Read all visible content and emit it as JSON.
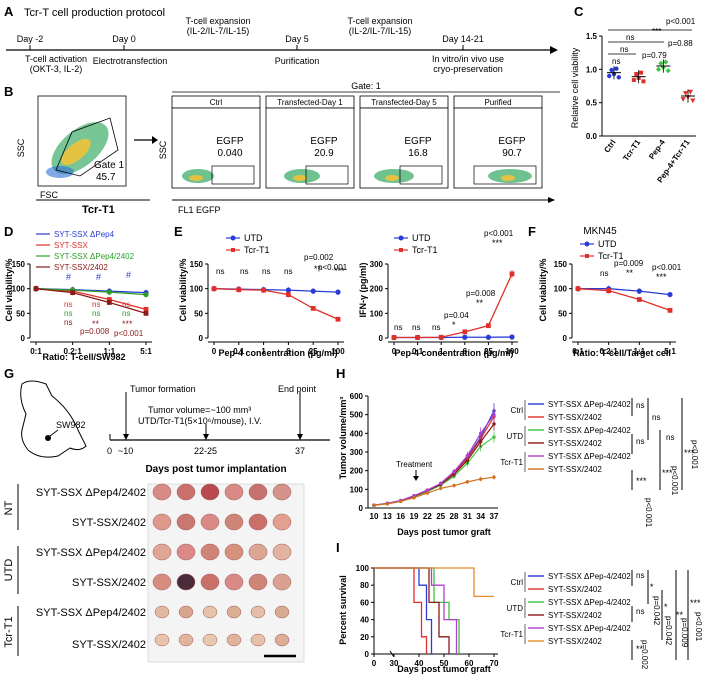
{
  "panels": {
    "A": "A",
    "B": "B",
    "C": "C",
    "D": "D",
    "E": "E",
    "F": "F",
    "G": "G",
    "H": "H",
    "I": "I"
  },
  "panel_a": {
    "title": "Tcr-T cell production protocol",
    "day_m2": "Day -2",
    "day_0": "Day 0",
    "day_5": "Day 5",
    "day_14": "Day 14-21",
    "ev1a": "T-cell activation",
    "ev1b": "(OKT-3, IL-2)",
    "ev2": "Electrotransfection",
    "ev3a": "T-cell expansion",
    "ev3b": "(IL-2/IL-7/IL-15)",
    "ev4": "Purification",
    "ev5a": "T-cell expansion",
    "ev5b": "(IL-2/IL-7/IL-15)",
    "ev6a": "In vitro/in vivo use",
    "ev6b": "cryo-preservation"
  },
  "panel_b": {
    "gate_label": "Gate 1",
    "gate_value": "45.7",
    "header": "Gate: 1",
    "ssc": "SSC",
    "fsc": "FSC",
    "tcr": "Tcr-T1",
    "fl1": "FL1 EGFP",
    "plots": [
      {
        "title": "Ctrl",
        "egfp": "EGFP",
        "value": "0.040"
      },
      {
        "title": "Transfected-Day 1",
        "egfp": "EGFP",
        "value": "20.9"
      },
      {
        "title": "Transfected-Day 5",
        "egfp": "EGFP",
        "value": "16.8"
      },
      {
        "title": "Purified",
        "egfp": "EGFP",
        "value": "90.7"
      }
    ]
  },
  "panel_c": {
    "ylabel": "Relative cell viability",
    "categories": [
      "Ctrl",
      "Tcr-T1",
      "Pep-4",
      "Pep-4+Tcr-T1"
    ],
    "stats": [
      "p<0.001",
      "***",
      "ns",
      "p=0.88",
      "ns",
      "p=0.79",
      "ns"
    ]
  },
  "panel_d": {
    "ylabel": "Cell viability/%",
    "xlabel": "Ratio: T-cell/SW982",
    "legend": [
      "SYT-SSX ΔPep4",
      "SYT-SSX",
      "SYT-SSX ΔPep4/2402",
      "SYT-SSX/2402"
    ],
    "sig": [
      "#",
      "ns",
      "**",
      "p=0.008",
      "***",
      "p<0.001"
    ]
  },
  "panel_e1": {
    "ylabel": "Cell viability/%",
    "xlabel": "Pep-4 concentration (μg/ml)",
    "legend": [
      "UTD",
      "Tcr-T1"
    ],
    "stats": [
      "ns",
      "p=0.002",
      "p<0.001",
      "**",
      "***"
    ]
  },
  "panel_e2": {
    "ylabel": "IFN-γ (pg/ml)",
    "xlabel": "Pep-4 concentration (μg/ml)",
    "legend": [
      "UTD",
      "Tcr-T1"
    ],
    "stats": [
      "ns",
      "p=0.04",
      "p=0.008",
      "p<0.001",
      "*",
      "**",
      "***"
    ]
  },
  "panel_f": {
    "title": "MKN45",
    "ylabel": "Cell viability/%",
    "xlabel": "Ratio: T-cell/Target cell",
    "legend": [
      "UTD",
      "Tcr-T1"
    ],
    "stats": [
      "ns",
      "p=0.009",
      "p<0.001",
      "**",
      "***"
    ]
  },
  "panel_g": {
    "tf": "Tumor formation",
    "ep": "End point",
    "tv": "Tumor volume=~100 mm³",
    "udt": "UTD/Tcr-T1(5×10⁶/mouse), I.V.",
    "sw": "SW982",
    "t0": "0",
    "t10": "~10",
    "t22": "22-25",
    "t37": "37",
    "xlabel": "Days post tumor implantation",
    "groups": [
      "NT",
      "UTD",
      "Tcr-T1"
    ],
    "rows": [
      "SYT-SSX ΔPep4/2402",
      "SYT-SSX/2402",
      "SYT-SSX ΔPep4/2402",
      "SYT-SSX/2402",
      "SYT-SSX ΔPep4/2402",
      "SYT-SSX/2402"
    ]
  },
  "panel_h": {
    "ylabel": "Tumor volume/mm³",
    "xlabel": "Days post tumor graft",
    "treatment": "Treatment",
    "groups": [
      "Ctrl",
      "UTD",
      "Tcr-T1"
    ],
    "legend": [
      "SYT-SSX ΔPep-4/2402",
      "SYT-SSX/2402",
      "SYT-SSX ΔPep-4/2402",
      "SYT-SSX/2402",
      "SYT-SSX ΔPep-4/2402",
      "SYT-SSX/2402"
    ],
    "stats": [
      "ns",
      "ns",
      "ns",
      "ns",
      "***",
      "p<0.001",
      "***",
      "p<0.001",
      "***",
      "p<0.001"
    ]
  },
  "panel_i": {
    "ylabel": "Percent survival",
    "xlabel": "Days post tumor graft",
    "groups": [
      "Ctrl",
      "UTD",
      "Tcr-T1"
    ],
    "legend": [
      "SYT-SSX ΔPep-4/2402",
      "SYT-SSX/2402",
      "SYT-SSX ΔPep-4/2402",
      "SYT-SSX/2402",
      "SYT-SSX ΔPep-4/2402",
      "SYT-SSX/2402"
    ],
    "stats": [
      "ns",
      "*",
      "p=0.042",
      "ns",
      "*",
      "p=0.042",
      "**",
      "p=0.009",
      "**",
      "p=0.002",
      "***",
      "p<0.001"
    ]
  },
  "chart_data": [
    {
      "type": "scatter",
      "id": "C",
      "categories": [
        "Ctrl",
        "Tcr-T1",
        "Pep-4",
        "Pep-4+Tcr-T1"
      ],
      "means": [
        0.95,
        0.89,
        1.05,
        0.6
      ],
      "ylim": [
        0,
        1.5
      ],
      "yticks": [
        0,
        0.5,
        1.0,
        1.5
      ],
      "ylabel": "Relative cell viability"
    },
    {
      "type": "line",
      "id": "D",
      "categories": [
        "0:1",
        "0.2:1",
        "1:1",
        "5:1"
      ],
      "ylim": [
        0,
        150
      ],
      "yticks": [
        0,
        50,
        100,
        150
      ],
      "series": [
        {
          "name": "SYT-SSX ΔPep4",
          "color": "#2b3bd6",
          "values": [
            100,
            98,
            95,
            92
          ]
        },
        {
          "name": "SYT-SSX",
          "color": "#e0302a",
          "values": [
            100,
            95,
            78,
            58
          ]
        },
        {
          "name": "SYT-SSX ΔPep4/2402",
          "color": "#2aa02a",
          "values": [
            100,
            97,
            93,
            88
          ]
        },
        {
          "name": "SYT-SSX/2402",
          "color": "#8b1a1a",
          "values": [
            100,
            92,
            72,
            50
          ]
        }
      ]
    },
    {
      "type": "line",
      "id": "E1",
      "categories": [
        "0",
        "0.1",
        "1",
        "6",
        "25",
        "100"
      ],
      "ylim": [
        0,
        150
      ],
      "yticks": [
        0,
        50,
        100,
        150
      ],
      "series": [
        {
          "name": "UTD",
          "color": "#2b3bd6",
          "values": [
            100,
            99,
            98,
            97,
            95,
            93
          ]
        },
        {
          "name": "Tcr-T1",
          "color": "#e0302a",
          "values": [
            100,
            98,
            97,
            88,
            60,
            38
          ]
        }
      ]
    },
    {
      "type": "line",
      "id": "E2",
      "categories": [
        "0",
        "0.1",
        "1",
        "6",
        "25",
        "100"
      ],
      "ylim": [
        0,
        300
      ],
      "yticks": [
        0,
        100,
        200,
        300
      ],
      "series": [
        {
          "name": "UTD",
          "color": "#2b3bd6",
          "values": [
            2,
            2,
            2,
            3,
            3,
            4
          ]
        },
        {
          "name": "Tcr-T1",
          "color": "#e0302a",
          "values": [
            2,
            2,
            3,
            25,
            50,
            260
          ]
        }
      ]
    },
    {
      "type": "line",
      "id": "F",
      "categories": [
        "0:1",
        "0.2:1",
        "1:1",
        "5:1"
      ],
      "ylim": [
        0,
        150
      ],
      "yticks": [
        0,
        50,
        100,
        150
      ],
      "series": [
        {
          "name": "UTD",
          "color": "#2b3bd6",
          "values": [
            100,
            100,
            95,
            88
          ]
        },
        {
          "name": "Tcr-T1",
          "color": "#e0302a",
          "values": [
            100,
            96,
            78,
            56
          ]
        }
      ]
    },
    {
      "type": "line",
      "id": "H",
      "categories": [
        "10",
        "13",
        "16",
        "19",
        "22",
        "25",
        "28",
        "31",
        "34",
        "37"
      ],
      "ylim": [
        0,
        600
      ],
      "yticks": [
        0,
        100,
        200,
        300,
        400,
        500,
        600
      ],
      "series": [
        {
          "name": "Ctrl SYT-SSX ΔPep-4/2402",
          "color": "#2b3bd6",
          "values": [
            15,
            25,
            40,
            65,
            95,
            130,
            190,
            270,
            380,
            520
          ]
        },
        {
          "name": "Ctrl SYT-SSX/2402",
          "color": "#e0302a",
          "values": [
            15,
            24,
            38,
            62,
            92,
            128,
            185,
            265,
            370,
            490
          ]
        },
        {
          "name": "UTD SYT-SSX ΔPep-4/2402",
          "color": "#3cc43c",
          "values": [
            15,
            23,
            37,
            60,
            88,
            122,
            170,
            240,
            330,
            380
          ]
        },
        {
          "name": "UTD SYT-SSX/2402",
          "color": "#8b1a1a",
          "values": [
            15,
            24,
            39,
            63,
            93,
            126,
            180,
            255,
            355,
            450
          ]
        },
        {
          "name": "Tcr-T1 SYT-SSX ΔPep-4/2402",
          "color": "#b040d0",
          "values": [
            15,
            25,
            40,
            66,
            96,
            132,
            195,
            280,
            400,
            500
          ]
        },
        {
          "name": "Tcr-T1 SYT-SSX/2402",
          "color": "#d07020",
          "values": [
            15,
            22,
            35,
            55,
            80,
            105,
            120,
            140,
            155,
            165
          ]
        }
      ]
    },
    {
      "type": "line",
      "id": "I",
      "xlim": [
        0,
        70
      ],
      "xticks": [
        0,
        30,
        40,
        50,
        60,
        70
      ],
      "ylim": [
        0,
        100
      ],
      "yticks": [
        0,
        20,
        40,
        60,
        80,
        100
      ],
      "series": [
        {
          "name": "Ctrl SYT-SSX ΔPep-4/2402",
          "color": "#2b3bd6",
          "steps": [
            [
              0,
              100
            ],
            [
              40,
              100
            ],
            [
              40,
              80
            ],
            [
              43,
              80
            ],
            [
              43,
              40
            ],
            [
              45,
              40
            ],
            [
              45,
              0
            ]
          ]
        },
        {
          "name": "Ctrl SYT-SSX/2402",
          "color": "#e0302a",
          "steps": [
            [
              0,
              100
            ],
            [
              38,
              100
            ],
            [
              38,
              60
            ],
            [
              41,
              60
            ],
            [
              41,
              20
            ],
            [
              43,
              20
            ],
            [
              43,
              0
            ]
          ]
        },
        {
          "name": "UTD SYT-SSX ΔPep-4/2402",
          "color": "#3cc43c",
          "steps": [
            [
              0,
              100
            ],
            [
              46,
              100
            ],
            [
              46,
              60
            ],
            [
              52,
              60
            ],
            [
              52,
              40
            ],
            [
              56,
              40
            ],
            [
              56,
              0
            ]
          ]
        },
        {
          "name": "UTD SYT-SSX/2402",
          "color": "#8b1a1a",
          "steps": [
            [
              0,
              100
            ],
            [
              44,
              100
            ],
            [
              44,
              60
            ],
            [
              48,
              60
            ],
            [
              48,
              20
            ],
            [
              52,
              20
            ],
            [
              52,
              0
            ]
          ]
        },
        {
          "name": "Tcr-T1 SYT-SSX ΔPep-4/2402",
          "color": "#b040d0",
          "steps": [
            [
              0,
              100
            ],
            [
              45,
              100
            ],
            [
              45,
              80
            ],
            [
              50,
              80
            ],
            [
              50,
              40
            ],
            [
              55,
              40
            ],
            [
              55,
              0
            ]
          ]
        },
        {
          "name": "Tcr-T1 SYT-SSX/2402",
          "color": "#e08a2a",
          "steps": [
            [
              0,
              100
            ],
            [
              62,
              100
            ],
            [
              62,
              67
            ],
            [
              70,
              67
            ]
          ]
        }
      ]
    }
  ]
}
